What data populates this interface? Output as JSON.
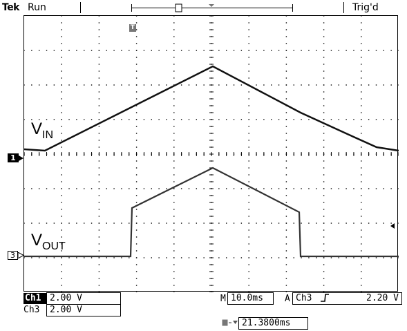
{
  "header": {
    "brand": "Tek",
    "acquisition_state": "Run",
    "trigger_status": "Trig'd"
  },
  "waveform_labels": {
    "vin_base": "V",
    "vin_sub": "IN",
    "vout_base": "V",
    "vout_sub": "OUT"
  },
  "markers": {
    "ch1": "1",
    "ch3": "3",
    "trigger_position": "T"
  },
  "readouts": {
    "ch1_label": "Ch1",
    "ch1_scale": "2.00 V",
    "ch3_label": "Ch3",
    "ch3_scale": "2.00 V",
    "time_prefix": "M",
    "time_per_div": "10.0ms",
    "trigger_mode": "A",
    "trigger_source": "Ch3",
    "trigger_level": "2.20 V",
    "trigger_delay": "21.3800ms"
  },
  "colors": {
    "trace": "#111111",
    "grid": "#000000"
  }
}
